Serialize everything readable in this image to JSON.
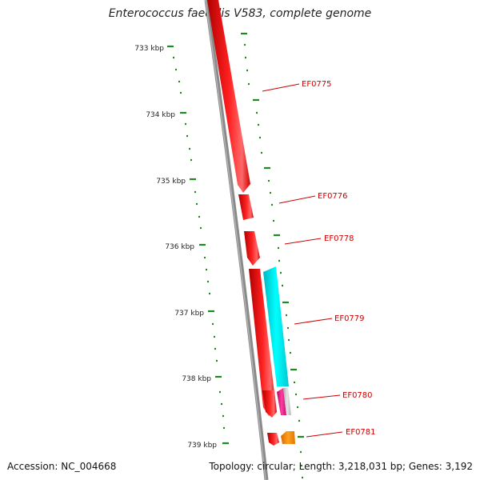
{
  "title": "Enterococcus faecalis V583, complete genome",
  "accession_text": "Accession: NC_004668",
  "summary_text": "Topology: circular; Length: 3,218,031 bp; Genes: 3,192",
  "colors": {
    "backbone": "#808080",
    "tick": "#1e8a1e",
    "label": "#cc0000",
    "forward_gene": "#ff0000",
    "reverse_gene_cyan": "#00e5e5",
    "reverse_gene_magenta": "#e0308a",
    "reverse_gene_grey": "#c8c8c8",
    "reverse_gene_orange": "#ff8c00"
  },
  "scale_labels": [
    "733 kbp",
    "734 kbp",
    "735 kbp",
    "736 kbp",
    "737 kbp",
    "738 kbp",
    "739 kbp"
  ],
  "gene_labels": [
    "EF0775",
    "EF0776",
    "EF0778",
    "EF0779",
    "EF0780",
    "EF0781"
  ]
}
